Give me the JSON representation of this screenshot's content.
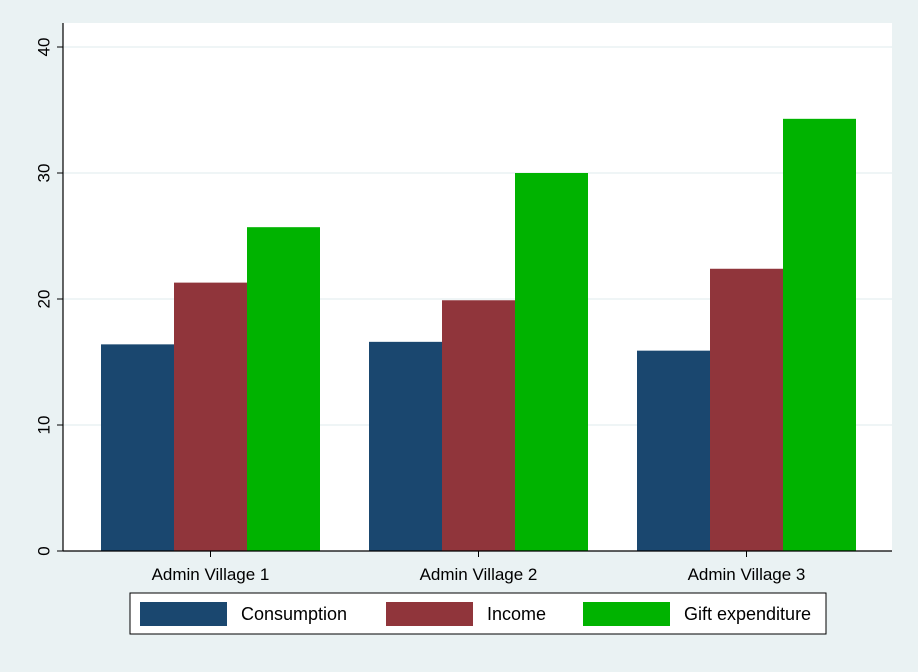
{
  "chart_data": {
    "type": "bar",
    "title": "",
    "xlabel": "",
    "ylabel": "",
    "categories": [
      "Admin Village 1",
      "Admin Village 2",
      "Admin Village 3"
    ],
    "series": [
      {
        "name": "Consumption",
        "values": [
          16.4,
          16.6,
          15.9
        ],
        "color": "#1a476f"
      },
      {
        "name": "Income",
        "values": [
          21.3,
          19.9,
          22.4
        ],
        "color": "#90353b"
      },
      {
        "name": "Gift expenditure",
        "values": [
          25.7,
          30.0,
          34.3
        ],
        "color": "#00b300"
      }
    ],
    "ylim": [
      0,
      40
    ],
    "yticks": [
      0,
      10,
      20,
      30,
      40
    ],
    "grid": true,
    "legend_position": "bottom",
    "colors": {
      "background": "#eaf2f3",
      "plot_background": "#ffffff",
      "gridline": "#eaf2f3"
    }
  }
}
